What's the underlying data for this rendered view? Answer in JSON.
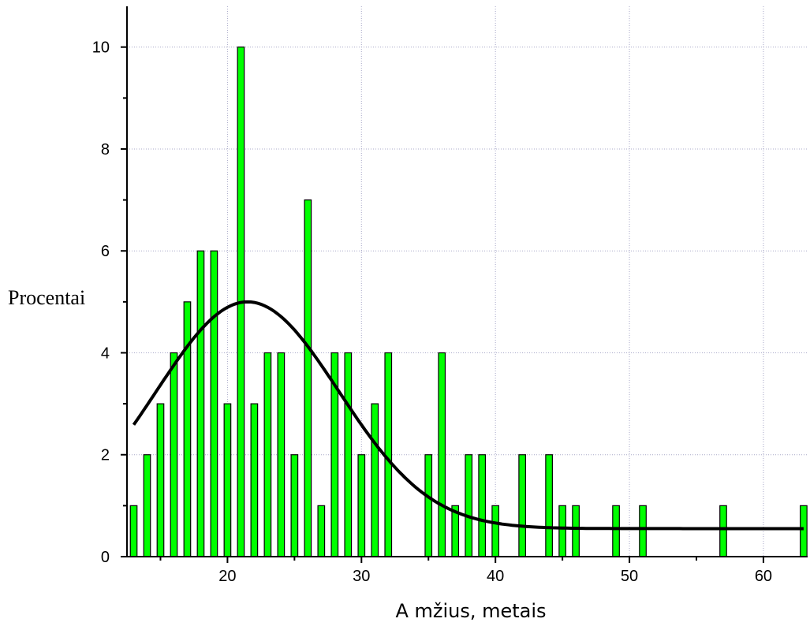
{
  "chart_data": {
    "type": "bar",
    "title": "",
    "xlabel": "A mžius, metais",
    "ylabel": "Procentai",
    "xlim": [
      12.5,
      63.3
    ],
    "ylim": [
      0,
      10.8
    ],
    "x_ticks": [
      20,
      30,
      40,
      50,
      60
    ],
    "y_ticks": [
      0,
      2,
      4,
      6,
      8,
      10
    ],
    "grid": true,
    "bar_color": "#00ff00",
    "bar_edge_color": "#000000",
    "curve_color": "#000000",
    "bars": [
      {
        "x": 13,
        "value": 1
      },
      {
        "x": 14,
        "value": 2
      },
      {
        "x": 15,
        "value": 3
      },
      {
        "x": 16,
        "value": 4
      },
      {
        "x": 17,
        "value": 5
      },
      {
        "x": 18,
        "value": 6
      },
      {
        "x": 19,
        "value": 6
      },
      {
        "x": 20,
        "value": 3
      },
      {
        "x": 21,
        "value": 10
      },
      {
        "x": 22,
        "value": 3
      },
      {
        "x": 23,
        "value": 4
      },
      {
        "x": 24,
        "value": 4
      },
      {
        "x": 25,
        "value": 2
      },
      {
        "x": 26,
        "value": 7
      },
      {
        "x": 27,
        "value": 1
      },
      {
        "x": 28,
        "value": 4
      },
      {
        "x": 29,
        "value": 4
      },
      {
        "x": 30,
        "value": 2
      },
      {
        "x": 31,
        "value": 3
      },
      {
        "x": 32,
        "value": 4
      },
      {
        "x": 35,
        "value": 2
      },
      {
        "x": 36,
        "value": 4
      },
      {
        "x": 37,
        "value": 1
      },
      {
        "x": 38,
        "value": 2
      },
      {
        "x": 39,
        "value": 2
      },
      {
        "x": 40,
        "value": 1
      },
      {
        "x": 42,
        "value": 2
      },
      {
        "x": 44,
        "value": 2
      },
      {
        "x": 45,
        "value": 1
      },
      {
        "x": 46,
        "value": 1
      },
      {
        "x": 49,
        "value": 1
      },
      {
        "x": 51,
        "value": 1
      },
      {
        "x": 57,
        "value": 1
      },
      {
        "x": 63,
        "value": 1
      }
    ],
    "fit_curve": {
      "type": "gaussian",
      "baseline": 0.55,
      "amplitude": 4.45,
      "center": 21.5,
      "sigma": 6.8,
      "x_range": [
        13,
        63
      ]
    }
  }
}
